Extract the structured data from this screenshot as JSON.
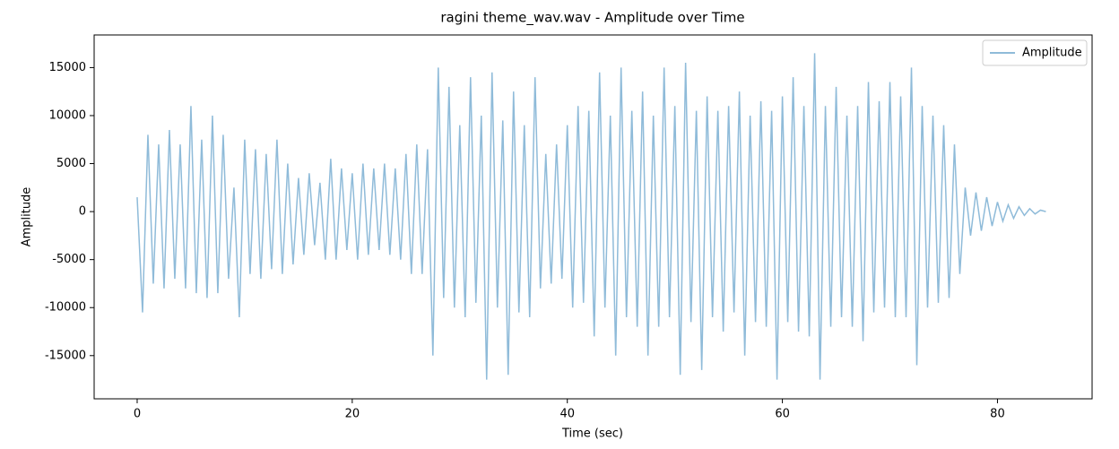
{
  "chart_data": {
    "type": "line",
    "title": "ragini theme_wav.wav - Amplitude over Time",
    "x_label": "Time (sec)",
    "y_label": "Amplitude",
    "xlim": [
      -4.0,
      88.8
    ],
    "ylim": [
      -19500,
      18400
    ],
    "xticks": [
      0,
      20,
      40,
      60,
      80
    ],
    "yticks": [
      -15000,
      -10000,
      -5000,
      0,
      5000,
      10000,
      15000
    ],
    "grid": false,
    "legend": "upper right",
    "x": [
      0,
      0.5,
      1,
      1.5,
      2,
      2.5,
      3,
      3.5,
      4,
      4.5,
      5,
      5.5,
      6,
      6.5,
      7,
      7.5,
      8,
      8.5,
      9,
      9.5,
      10,
      10.5,
      11,
      11.5,
      12,
      12.5,
      13,
      13.5,
      14,
      14.5,
      15,
      15.5,
      16,
      16.5,
      17,
      17.5,
      18,
      18.5,
      19,
      19.5,
      20,
      20.5,
      21,
      21.5,
      22,
      22.5,
      23,
      23.5,
      24,
      24.5,
      25,
      25.5,
      26,
      26.5,
      27,
      27.5,
      28,
      28.5,
      29,
      29.5,
      30,
      30.5,
      31,
      31.5,
      32,
      32.5,
      33,
      33.5,
      34,
      34.5,
      35,
      35.5,
      36,
      36.5,
      37,
      37.5,
      38,
      38.5,
      39,
      39.5,
      40,
      40.5,
      41,
      41.5,
      42,
      42.5,
      43,
      43.5,
      44,
      44.5,
      45,
      45.5,
      46,
      46.5,
      47,
      47.5,
      48,
      48.5,
      49,
      49.5,
      50,
      50.5,
      51,
      51.5,
      52,
      52.5,
      53,
      53.5,
      54,
      54.5,
      55,
      55.5,
      56,
      56.5,
      57,
      57.5,
      58,
      58.5,
      59,
      59.5,
      60,
      60.5,
      61,
      61.5,
      62,
      62.5,
      63,
      63.5,
      64,
      64.5,
      65,
      65.5,
      66,
      66.5,
      67,
      67.5,
      68,
      68.5,
      69,
      69.5,
      70,
      70.5,
      71,
      71.5,
      72,
      72.5,
      73,
      73.5,
      74,
      74.5,
      75,
      75.5,
      76,
      76.5,
      77,
      77.5,
      78,
      78.5,
      79,
      79.5,
      80,
      80.5,
      81,
      81.5,
      82,
      82.5,
      83,
      83.5,
      84,
      84.5
    ],
    "series": [
      {
        "name": "Amplitude",
        "color": "#8fbbd9",
        "values": [
          1500,
          -10500,
          8000,
          -7500,
          7000,
          -8000,
          8500,
          -7000,
          7000,
          -8000,
          11000,
          -8500,
          7500,
          -9000,
          10000,
          -8500,
          8000,
          -7000,
          2500,
          -11000,
          7500,
          -6500,
          6500,
          -7000,
          6000,
          -6000,
          7500,
          -6500,
          5000,
          -5500,
          3500,
          -4500,
          4000,
          -3500,
          3000,
          -5000,
          5500,
          -5000,
          4500,
          -4000,
          4000,
          -5000,
          5000,
          -4500,
          4500,
          -4000,
          5000,
          -4500,
          4500,
          -5000,
          6000,
          -6500,
          7000,
          -6500,
          6500,
          -15000,
          15000,
          -9000,
          13000,
          -10000,
          9000,
          -11000,
          14000,
          -9500,
          10000,
          -17500,
          14500,
          -10000,
          9500,
          -17000,
          12500,
          -10500,
          9000,
          -11000,
          14000,
          -8000,
          6000,
          -7500,
          7000,
          -7000,
          9000,
          -10000,
          11000,
          -9500,
          10500,
          -13000,
          14500,
          -10000,
          10000,
          -15000,
          15000,
          -11000,
          10500,
          -12000,
          12500,
          -15000,
          10000,
          -12000,
          15000,
          -11000,
          11000,
          -17000,
          15500,
          -11500,
          10500,
          -16500,
          12000,
          -11000,
          10500,
          -12500,
          11000,
          -10500,
          12500,
          -15000,
          10000,
          -11500,
          11500,
          -12000,
          10500,
          -17500,
          12000,
          -11500,
          14000,
          -12500,
          11000,
          -13000,
          16500,
          -17500,
          11000,
          -12000,
          13000,
          -11000,
          10000,
          -12000,
          11000,
          -13500,
          13500,
          -10500,
          11500,
          -10000,
          13500,
          -11000,
          12000,
          -11000,
          15000,
          -16000,
          11000,
          -10000,
          10000,
          -9500,
          9000,
          -9000,
          7000,
          -6500,
          2500,
          -2500,
          2000,
          -2000,
          1500,
          -1500,
          1000,
          -1000,
          700,
          -700,
          500,
          -400,
          300,
          -250,
          150,
          0
        ]
      }
    ]
  }
}
